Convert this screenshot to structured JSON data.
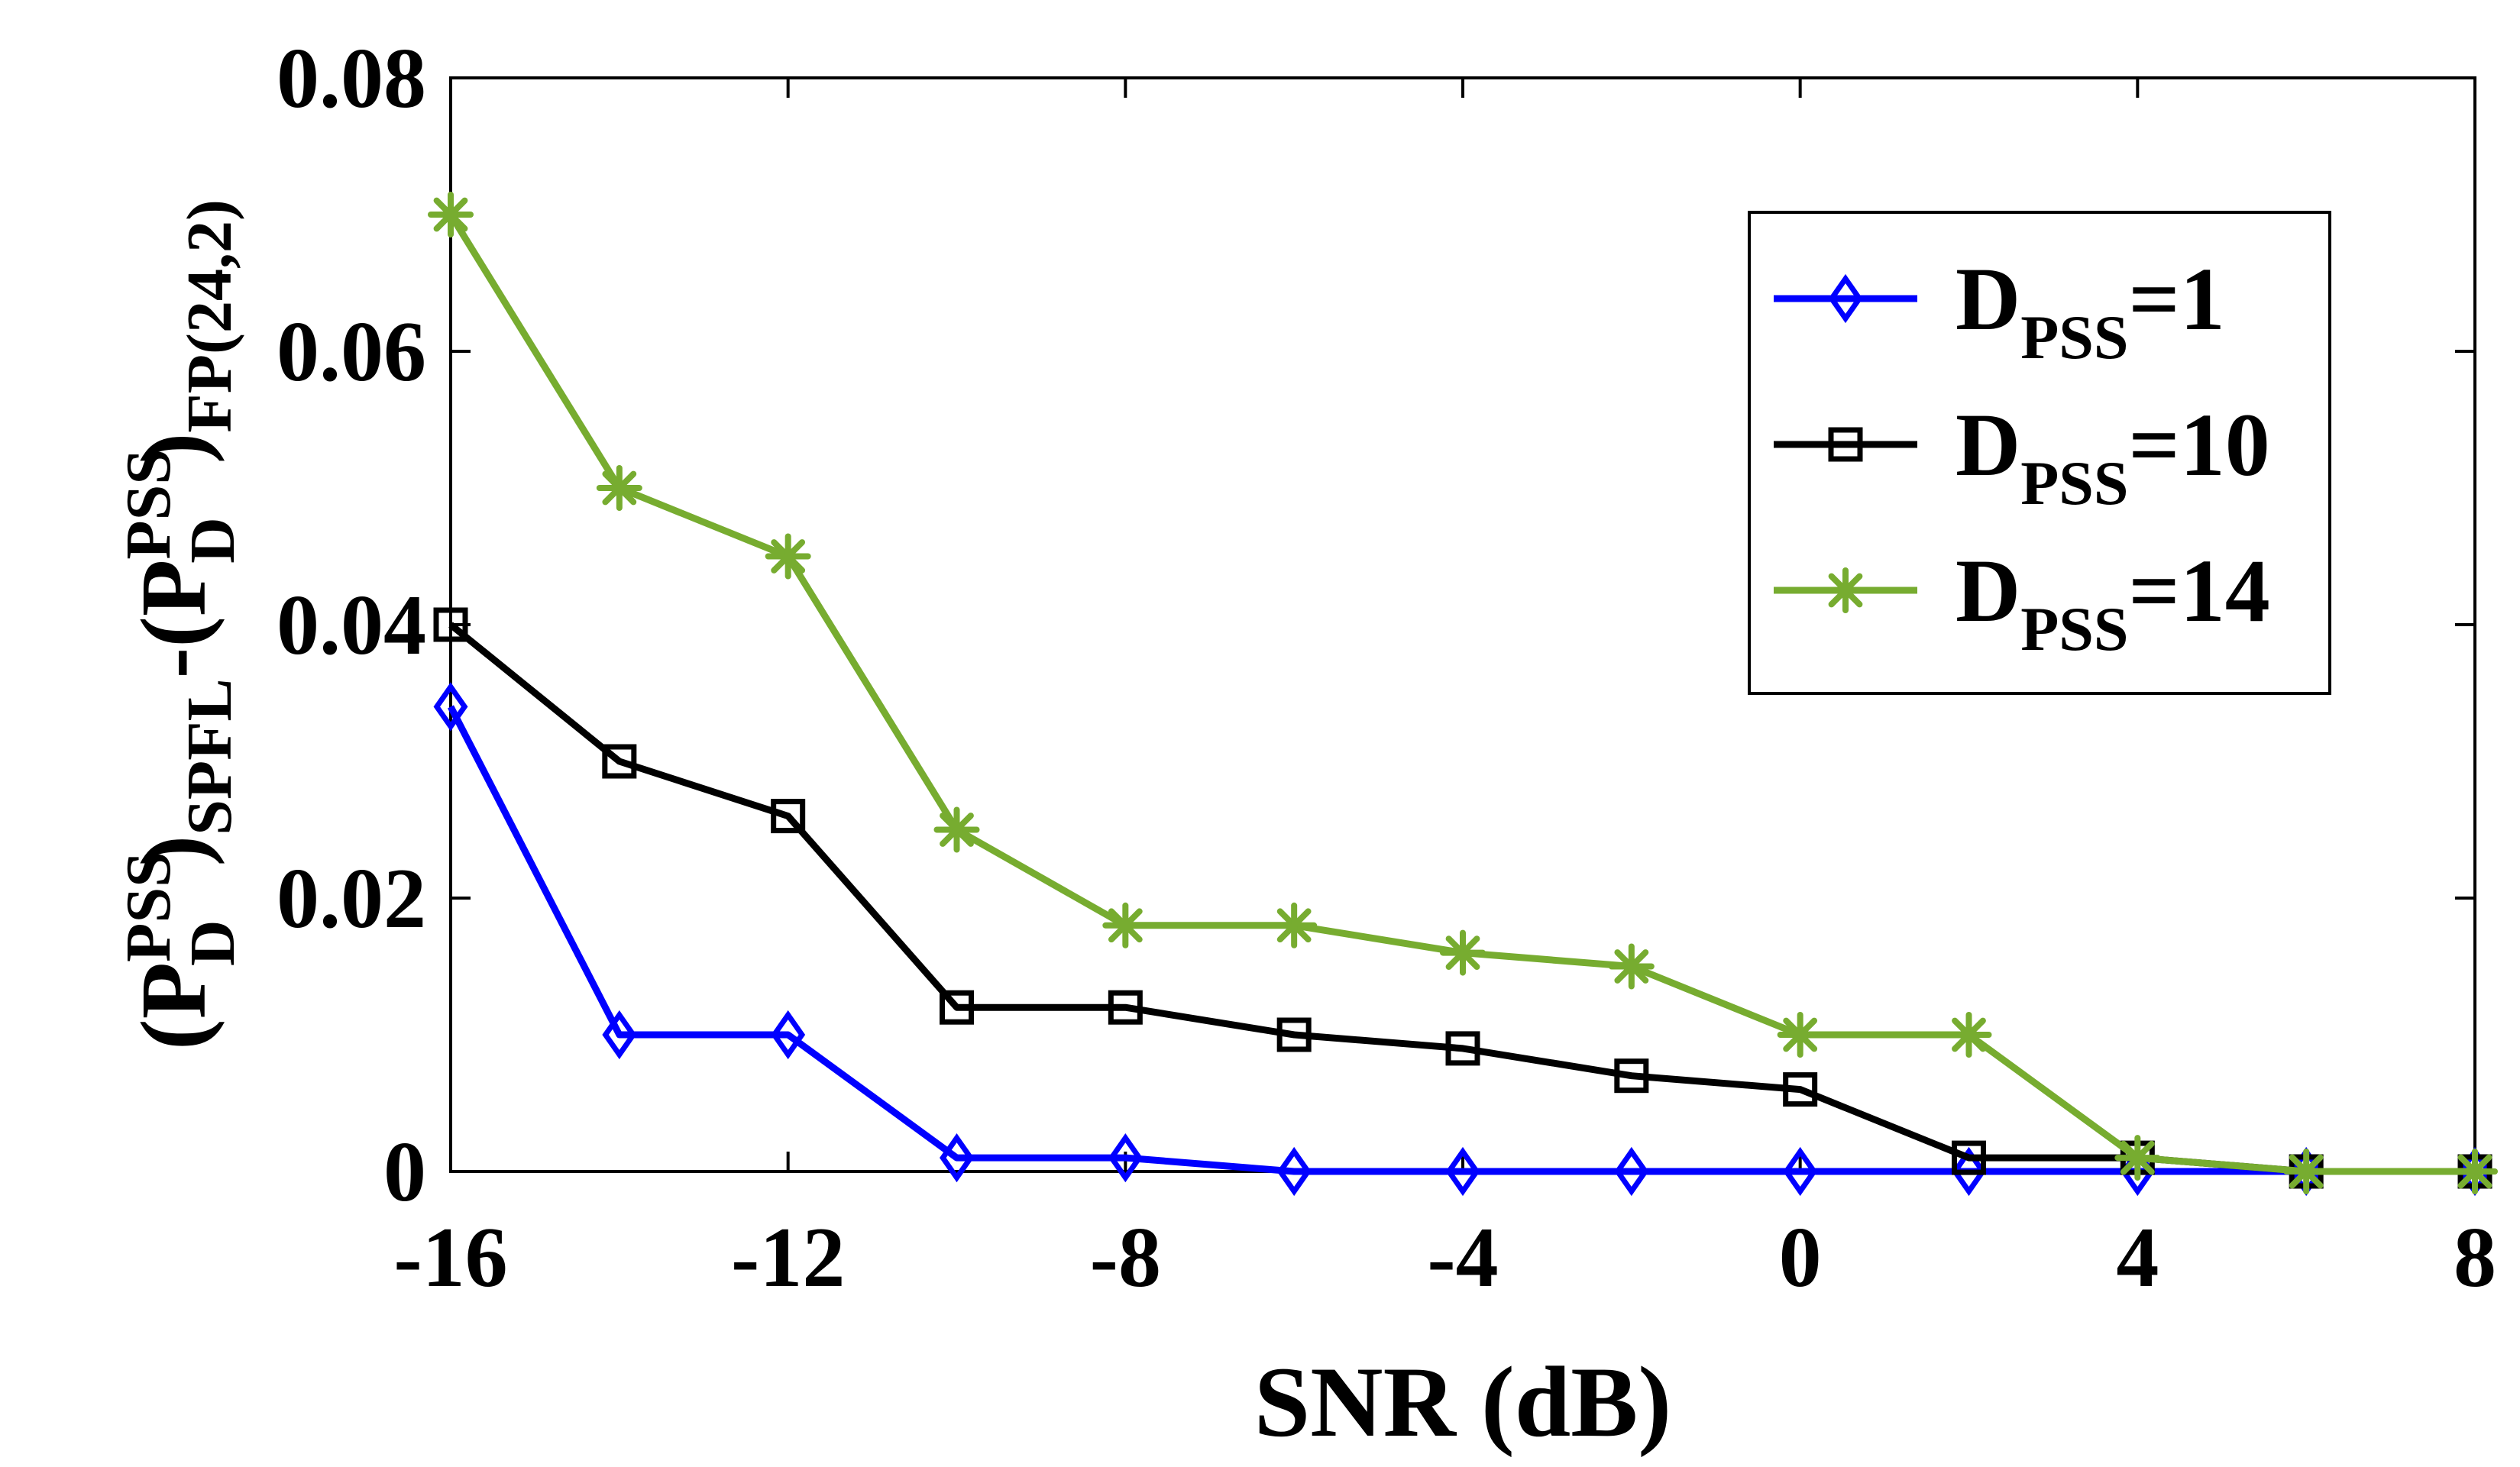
{
  "chart_data": {
    "type": "line",
    "xlabel": "SNR (dB)",
    "ylabel": {
      "open1": "(P",
      "sup1": "PSS",
      "sub1": "D",
      "close1": ")",
      "sub2": "SPFL",
      "mid": "-(P",
      "sup2": "PSS",
      "sub3": "D",
      "close2": ")",
      "sub4": "FP(24,2)"
    },
    "xlim": [
      -16,
      8
    ],
    "ylim": [
      0,
      0.08
    ],
    "xticks": [
      -16,
      -12,
      -8,
      -4,
      0,
      4,
      8
    ],
    "xtick_labels": [
      "-16",
      "-12",
      "-8",
      "-4",
      "0",
      "4",
      "8"
    ],
    "yticks": [
      0,
      0.02,
      0.04,
      0.06,
      0.08
    ],
    "ytick_labels": [
      "0",
      "0.02",
      "0.04",
      "0.06",
      "0.08"
    ],
    "grid": false,
    "legend_position": "top-right",
    "x": [
      -16,
      -14,
      -12,
      -10,
      -8,
      -6,
      -4,
      -2,
      0,
      2,
      4,
      6,
      8
    ],
    "series": [
      {
        "name": "D_PSS=1",
        "legend": {
          "main": "D",
          "sub": "PSS",
          "rest": "=1"
        },
        "color": "#0000ff",
        "marker": "diamond",
        "values": [
          0.034,
          0.01,
          0.01,
          0.001,
          0.001,
          0.0,
          0.0,
          0.0,
          0.0,
          0.0,
          0.0,
          0.0,
          0.0
        ]
      },
      {
        "name": "D_PSS=10",
        "legend": {
          "main": "D",
          "sub": "PSS",
          "rest": "=10"
        },
        "color": "#000000",
        "marker": "square",
        "values": [
          0.04,
          0.03,
          0.026,
          0.012,
          0.012,
          0.01,
          0.009,
          0.007,
          0.006,
          0.001,
          0.001,
          0.0,
          0.0
        ]
      },
      {
        "name": "D_PSS=14",
        "legend": {
          "main": "D",
          "sub": "PSS",
          "rest": "=14"
        },
        "color": "#77ac30",
        "marker": "asterisk",
        "values": [
          0.07,
          0.05,
          0.045,
          0.025,
          0.018,
          0.018,
          0.016,
          0.015,
          0.01,
          0.01,
          0.001,
          0.0,
          0.0
        ]
      }
    ]
  }
}
